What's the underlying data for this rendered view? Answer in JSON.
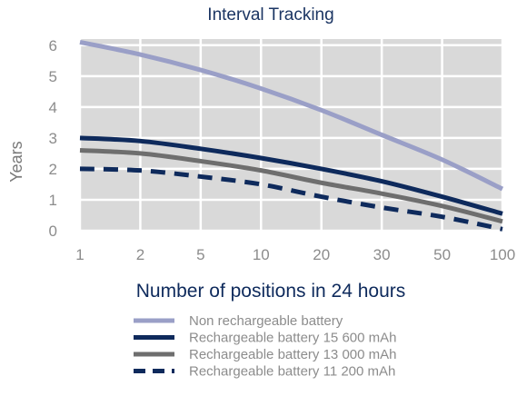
{
  "chart_data": {
    "type": "line",
    "title": "Interval Tracking",
    "xlabel": "Number of positions in 24 hours",
    "ylabel": "Years",
    "x": [
      1,
      2,
      5,
      10,
      20,
      30,
      50,
      100
    ],
    "x_tick_labels": [
      "1",
      "2",
      "5",
      "10",
      "20",
      "30",
      "50",
      "100"
    ],
    "y_ticks": [
      0,
      1,
      2,
      3,
      4,
      5,
      6
    ],
    "y_tick_labels": [
      "0",
      "1",
      "2",
      "3",
      "4",
      "5",
      "6"
    ],
    "ylim": [
      0,
      6.2
    ],
    "grid": true,
    "legend_position": "bottom",
    "series": [
      {
        "name": "Non rechargeable battery",
        "color": "#9a9fc7",
        "style": "solid",
        "values": [
          6.1,
          5.7,
          5.2,
          4.6,
          3.9,
          3.1,
          2.3,
          1.35
        ]
      },
      {
        "name": "Rechargeable battery 15 600 mAh",
        "color": "#0e2a5c",
        "style": "solid",
        "values": [
          3.0,
          2.9,
          2.65,
          2.35,
          2.0,
          1.6,
          1.1,
          0.55
        ]
      },
      {
        "name": "Rechargeable battery 13 000 mAh",
        "color": "#6e6e6e",
        "style": "solid",
        "values": [
          2.6,
          2.5,
          2.25,
          1.95,
          1.55,
          1.2,
          0.8,
          0.3
        ]
      },
      {
        "name": "Rechargeable battery 11 200 mAh",
        "color": "#0e2a5c",
        "style": "dashed",
        "values": [
          2.0,
          1.95,
          1.75,
          1.5,
          1.1,
          0.75,
          0.45,
          0.05
        ]
      }
    ]
  }
}
